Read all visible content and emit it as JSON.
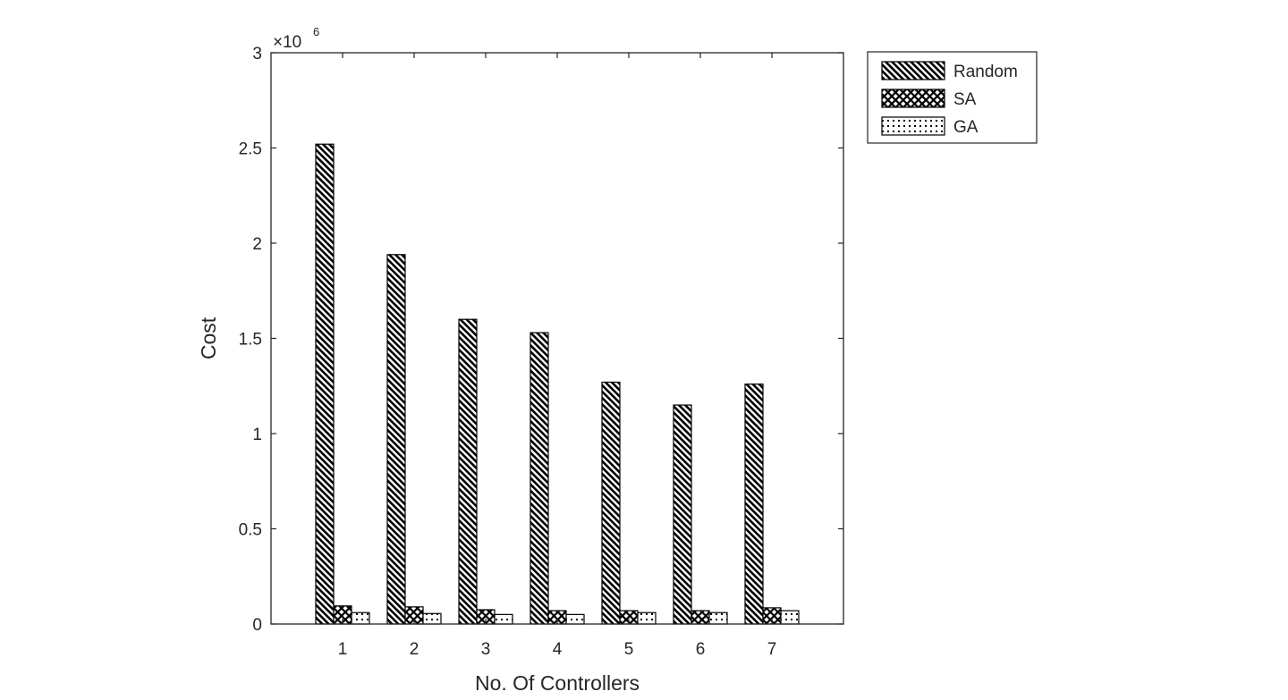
{
  "chart_data": {
    "type": "bar",
    "title": "",
    "xlabel": "No. Of Controllers",
    "ylabel": "Cost",
    "y_multiplier_base": "×10",
    "y_multiplier_exponent": "6",
    "categories": [
      "1",
      "2",
      "3",
      "4",
      "5",
      "6",
      "7"
    ],
    "ylim": [
      0,
      3000000
    ],
    "yticks": [
      0,
      500000,
      1000000,
      1500000,
      2000000,
      2500000,
      3000000
    ],
    "ytick_labels": [
      "0",
      "0.5",
      "1",
      "1.5",
      "2",
      "2.5",
      "3"
    ],
    "grid": false,
    "legend_position": "outside-top-right",
    "series": [
      {
        "name": "Random",
        "pattern": "diagonal-hatch",
        "values": [
          2520000,
          1940000,
          1600000,
          1530000,
          1270000,
          1150000,
          1260000
        ]
      },
      {
        "name": "SA",
        "pattern": "crosshatch",
        "values": [
          95000,
          90000,
          75000,
          70000,
          70000,
          70000,
          85000
        ]
      },
      {
        "name": "GA",
        "pattern": "dotted",
        "values": [
          60000,
          55000,
          50000,
          50000,
          60000,
          60000,
          70000
        ]
      }
    ]
  }
}
